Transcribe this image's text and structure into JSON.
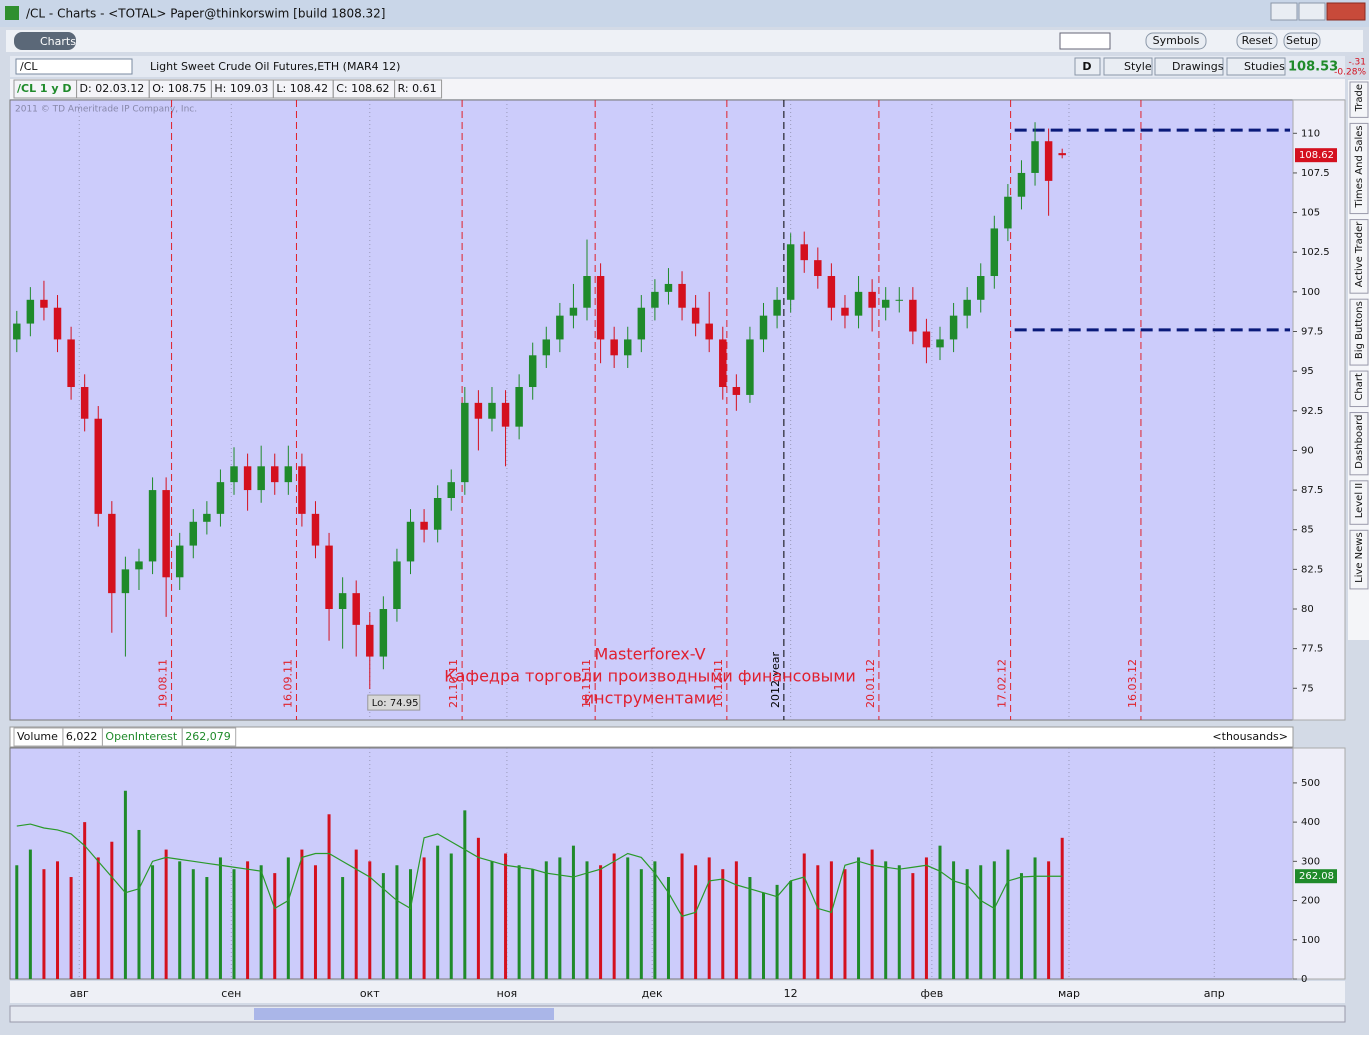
{
  "window": {
    "title": "/CL - Charts - <TOTAL> Paper@thinkorswim [build 1808.32]"
  },
  "toolbar": {
    "tab": "Charts",
    "buttons": [
      "Symbols",
      "Reset",
      "Setup"
    ]
  },
  "symbol_bar": {
    "symbol": "/CL",
    "description": "Light Sweet Crude Oil Futures,ETH (MAR4 12)",
    "period": "D",
    "buttons": [
      "Style",
      "Drawings",
      "Studies"
    ],
    "last": "108.53",
    "change": "-.31",
    "change_pct": "-0.28%"
  },
  "info_bar": [
    "/CL 1 y D",
    "D: 02.03.12",
    "O: 108.75",
    "H: 109.03",
    "L: 108.42",
    "C: 108.62",
    "R: 0.61"
  ],
  "side_tabs": [
    "Trade",
    "Times And Sales",
    "Active Trader",
    "Big Buttons",
    "Chart",
    "Dashboard",
    "Level II",
    "Live News"
  ],
  "chart_data": [
    {
      "type": "candlestick",
      "watermark": "2011 © TD Ameritrade IP Company, Inc.",
      "open": [
        97,
        98,
        99.5,
        99,
        97,
        94,
        92,
        86,
        81,
        82.5,
        83,
        87.5,
        82,
        84,
        85.5,
        86,
        88,
        89,
        87.5,
        89,
        88,
        89,
        86,
        84,
        80,
        81,
        79,
        77,
        80,
        83,
        85.5,
        85,
        87,
        88,
        93,
        92,
        93,
        91.5,
        94,
        96,
        97,
        98.5,
        99,
        101,
        97,
        96,
        97,
        99,
        100,
        100.5,
        99,
        98,
        97,
        94,
        93.5,
        97,
        98.5,
        99.5,
        103,
        102,
        101,
        99,
        98.5,
        100,
        99,
        99.5,
        99.5,
        97.5,
        96.5,
        97,
        98.5,
        99.5,
        101,
        104,
        106,
        107.5,
        109.5,
        108.75
      ],
      "high": [
        98.8,
        100.3,
        100.7,
        99.8,
        97.8,
        94.8,
        92.8,
        86.8,
        83.3,
        83.8,
        88.3,
        88.3,
        84.8,
        86.3,
        86.8,
        88.8,
        90.2,
        89.8,
        90.3,
        89.8,
        90.3,
        89.8,
        86.8,
        84.8,
        82,
        81.8,
        79.8,
        80.8,
        83.8,
        86.3,
        86.3,
        87.8,
        88.8,
        94,
        93.8,
        94,
        93.8,
        94.8,
        96.8,
        97.8,
        99.3,
        100.5,
        103.3,
        101.8,
        97.8,
        97.8,
        99.8,
        100.8,
        101.5,
        101.3,
        99.8,
        100,
        97.8,
        94.8,
        97.8,
        99.3,
        100.3,
        103.7,
        103.8,
        102.8,
        101.8,
        99.8,
        101,
        100.8,
        100.3,
        100.3,
        100.3,
        98.3,
        97.8,
        99.3,
        100.3,
        101.8,
        104.8,
        106.8,
        108.3,
        110.7,
        110.3,
        109.03
      ],
      "low": [
        96.2,
        97.2,
        98.2,
        96.2,
        93.2,
        91.2,
        85.2,
        78.5,
        77,
        81.2,
        82.2,
        79.5,
        81.2,
        83.2,
        84.7,
        85.2,
        87.2,
        86.2,
        86.7,
        87.2,
        87.2,
        85.2,
        83.2,
        78,
        77.5,
        77,
        74.95,
        76.2,
        79.2,
        82.2,
        84.2,
        84.2,
        86.2,
        87.2,
        90,
        91.2,
        89,
        90.7,
        93.2,
        95.2,
        96.2,
        97.7,
        98.2,
        95.5,
        95.2,
        95.2,
        96.2,
        98.2,
        99.2,
        98.2,
        97.2,
        96.2,
        93.2,
        92.5,
        93,
        96.2,
        97.7,
        98.7,
        101.2,
        100.2,
        98.2,
        97.7,
        97.7,
        97.5,
        98.2,
        98.7,
        96.7,
        95.5,
        95.7,
        96.2,
        97.7,
        98.7,
        100.2,
        103.2,
        105.2,
        106.7,
        104.8,
        108.42
      ],
      "close": [
        98,
        99.5,
        99,
        97,
        94,
        92,
        86,
        81,
        82.5,
        83,
        87.5,
        82,
        84,
        85.5,
        86,
        88,
        89,
        87.5,
        89,
        88,
        89,
        86,
        84,
        80,
        81,
        79,
        77,
        80,
        83,
        85.5,
        85,
        87,
        88,
        93,
        92,
        93,
        91.5,
        94,
        96,
        97,
        98.5,
        99,
        101,
        97,
        96,
        97,
        99,
        100,
        100.5,
        99,
        98,
        97,
        94,
        93.5,
        97,
        98.5,
        99.5,
        103,
        102,
        101,
        99,
        98.5,
        100,
        99,
        99.5,
        99.5,
        97.5,
        96.5,
        97,
        98.5,
        99.5,
        101,
        104,
        106,
        107.5,
        109.5,
        107,
        108.62
      ],
      "up_color": "#1f8a2a",
      "down_color": "#d4101e",
      "xlim": [
        -0.5,
        94
      ],
      "xticks": [
        {
          "value": 4.6,
          "label": "авг"
        },
        {
          "value": 15.8,
          "label": "сен"
        },
        {
          "value": 26,
          "label": "окт"
        },
        {
          "value": 36.1,
          "label": "ноя"
        },
        {
          "value": 46.8,
          "label": "дек"
        },
        {
          "value": 57,
          "label": "12"
        },
        {
          "value": 67.4,
          "label": "фев"
        },
        {
          "value": 77.5,
          "label": "мар"
        },
        {
          "value": 88.2,
          "label": "апр"
        }
      ],
      "ylim": [
        73,
        112.1
      ],
      "yticks": [
        75,
        77.5,
        80,
        82.5,
        85,
        87.5,
        90,
        92.5,
        95,
        97.5,
        100,
        102.5,
        105,
        107.5,
        110
      ],
      "vline_color": "#e0202a",
      "vlines": [
        {
          "value": 11.4,
          "label": "19.08.11"
        },
        {
          "value": 20.6,
          "label": "16.09.11"
        },
        {
          "value": 32.8,
          "label": "21.10.11"
        },
        {
          "value": 42.6,
          "label": "18.11.11"
        },
        {
          "value": 52.3,
          "label": "16.12.11"
        },
        {
          "value": 56.5,
          "label": "2012 year",
          "color": "#000000"
        },
        {
          "value": 63.5,
          "label": "20.01.12"
        },
        {
          "value": 73.2,
          "label": "17.02.12"
        },
        {
          "value": 82.8,
          "label": "16.03.12"
        }
      ],
      "hlines": [
        110.2,
        97.6
      ],
      "hline_color": "#0a1a7a",
      "low_label": "Lo: 74.95",
      "last_price": 108.62,
      "annotation": [
        "Masterforex-V",
        "Кафедра торговли производными финансовыми",
        "инструментами"
      ]
    },
    {
      "type": "bar",
      "header": {
        "volume_label": "Volume",
        "volume_value": "6,022",
        "oi_label": "OpenInterest",
        "oi_value": "262,079",
        "units": "<thousands>"
      },
      "values": [
        290,
        330,
        280,
        300,
        260,
        400,
        310,
        350,
        480,
        380,
        290,
        330,
        300,
        280,
        260,
        310,
        280,
        300,
        290,
        270,
        310,
        330,
        290,
        420,
        260,
        330,
        300,
        270,
        290,
        280,
        310,
        340,
        320,
        430,
        360,
        300,
        320,
        290,
        280,
        300,
        310,
        340,
        300,
        290,
        320,
        310,
        280,
        300,
        260,
        320,
        290,
        310,
        280,
        300,
        260,
        220,
        240,
        250,
        320,
        290,
        300,
        280,
        310,
        330,
        300,
        290,
        270,
        310,
        340,
        300,
        280,
        290,
        300,
        330,
        270,
        310,
        300,
        360
      ],
      "line": {
        "color": "#2a9a2a",
        "values": [
          390,
          395,
          385,
          380,
          370,
          340,
          300,
          260,
          220,
          230,
          300,
          310,
          305,
          300,
          295,
          290,
          285,
          280,
          275,
          180,
          200,
          310,
          320,
          320,
          300,
          280,
          260,
          230,
          200,
          180,
          360,
          370,
          350,
          330,
          310,
          300,
          290,
          285,
          280,
          270,
          265,
          260,
          270,
          280,
          300,
          320,
          310,
          270,
          220,
          160,
          170,
          250,
          255,
          240,
          230,
          220,
          210,
          250,
          260,
          180,
          170,
          290,
          300,
          290,
          285,
          280,
          285,
          290,
          275,
          250,
          240,
          200,
          180,
          250,
          260,
          262,
          262,
          262.08
        ]
      },
      "last_oi": 262.08,
      "ylim": [
        0,
        589
      ],
      "yticks": [
        0,
        100,
        200,
        300,
        400,
        500
      ]
    }
  ]
}
